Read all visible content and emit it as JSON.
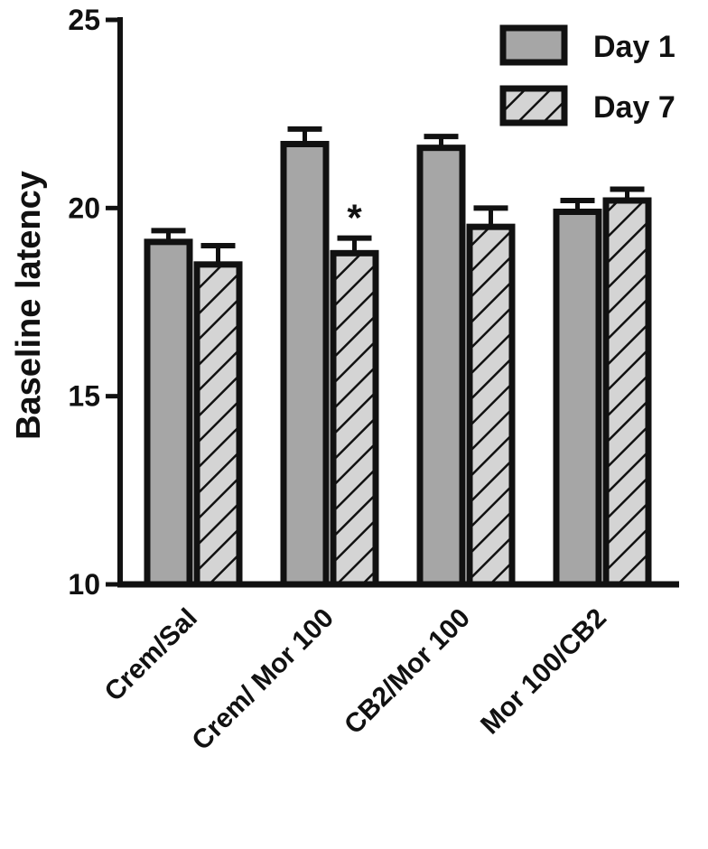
{
  "chart_data": {
    "type": "bar",
    "title": "",
    "xlabel": "",
    "ylabel": "Baseline latency",
    "ylim": [
      10,
      25
    ],
    "yticks": [
      10,
      15,
      20,
      25
    ],
    "grid": false,
    "legend_position": "top-right",
    "categories": [
      "Crem/Sal",
      "Crem/ Mor 100",
      "CB2/Mor 100",
      "Mor 100/CB2"
    ],
    "series": [
      {
        "name": "Day 1",
        "style": "solid",
        "color": "#a6a6a6",
        "values": [
          19.1,
          21.7,
          21.6,
          19.9
        ],
        "errors": [
          0.3,
          0.4,
          0.3,
          0.3
        ]
      },
      {
        "name": "Day 7",
        "style": "hatched",
        "color": "#d4d4d4",
        "values": [
          18.5,
          18.8,
          19.5,
          20.2
        ],
        "errors": [
          0.5,
          0.4,
          0.5,
          0.3
        ]
      }
    ],
    "annotations": [
      {
        "category_index": 1,
        "series_index": 1,
        "text": "*"
      }
    ]
  }
}
